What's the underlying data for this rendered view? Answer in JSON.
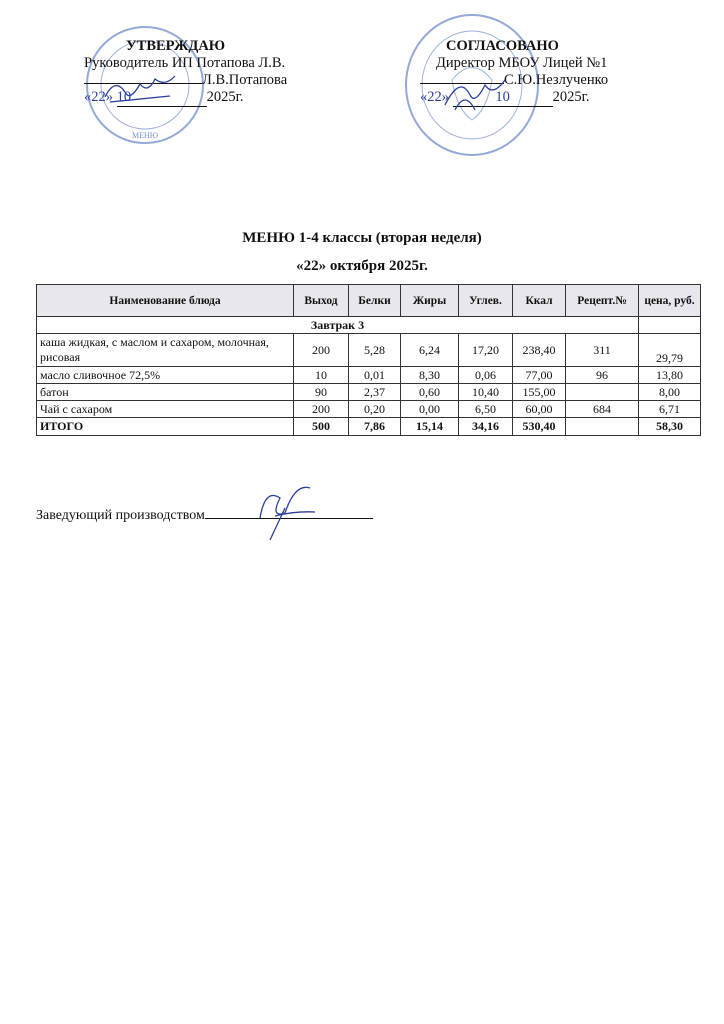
{
  "approve": {
    "title": "УТВЕРЖДАЮ",
    "position": "Руководитель ИП Потапова Л.В.",
    "name_line": "Л.В.Потапова",
    "date_day": "«22»",
    "date_month": "10",
    "date_year": "2025г.",
    "stamp_text": "МЕНЮ"
  },
  "agreed": {
    "title": "СОГЛАСОВАНО",
    "position": "Директор МБОУ Лицей №1",
    "name_line": "С.Ю.Незлученко",
    "date_day": "«22»",
    "date_month": "10",
    "date_year": "2025г."
  },
  "stamp_color": "#3a62b8",
  "menu_title": "МЕНЮ 1-4 классы  (вторая неделя)",
  "menu_date": "«22» октября 2025г.",
  "table": {
    "headers": [
      "Наименование блюда",
      "Выход",
      "Белки",
      "Жиры",
      "Углев.",
      "Ккал",
      "Рецепт.№",
      "цена, руб."
    ],
    "section": "Завтрак 3",
    "rows": [
      [
        "каша жидкая, с маслом и сахаром, молочная, рисовая",
        "200",
        "5,28",
        "6,24",
        "17,20",
        "238,40",
        "311",
        "29,79"
      ],
      [
        "масло сливочное 72,5%",
        "10",
        "0,01",
        "8,30",
        "0,06",
        "77,00",
        "96",
        "13,80"
      ],
      [
        "батон",
        "90",
        "2,37",
        "0,60",
        "10,40",
        "155,00",
        "",
        "8,00"
      ],
      [
        "Чай с сахаром",
        "200",
        "0,20",
        "0,00",
        "6,50",
        "60,00",
        "684",
        "6,71"
      ]
    ],
    "total": [
      "ИТОГО",
      "500",
      "7,86",
      "15,14",
      "34,16",
      "530,40",
      "",
      "58,30"
    ]
  },
  "footer": {
    "label": "Заведующий производством"
  }
}
